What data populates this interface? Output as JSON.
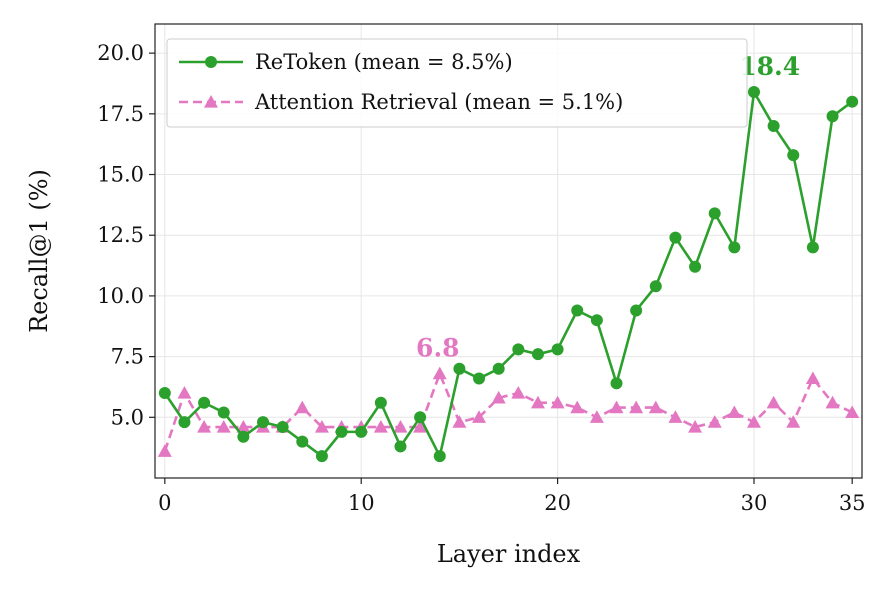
{
  "chart_data": {
    "type": "line",
    "xlabel": "Layer index",
    "ylabel": "Recall@1 (%)",
    "xlim": [
      -0.5,
      35.5
    ],
    "ylim": [
      2.5,
      21.2
    ],
    "xticks": [
      0,
      10,
      20,
      30,
      35
    ],
    "yticks": [
      5.0,
      7.5,
      10.0,
      12.5,
      15.0,
      17.5,
      20.0
    ],
    "grid": true,
    "legend_position": "top-left",
    "x": [
      0,
      1,
      2,
      3,
      4,
      5,
      6,
      7,
      8,
      9,
      10,
      11,
      12,
      13,
      14,
      15,
      16,
      17,
      18,
      19,
      20,
      21,
      22,
      23,
      24,
      25,
      26,
      27,
      28,
      29,
      30,
      31,
      32,
      33,
      34,
      35
    ],
    "series": [
      {
        "name": "ReToken (mean = 8.5%)",
        "color": "#2ca02c",
        "style": "solid",
        "marker": "circle",
        "values": [
          6.0,
          4.8,
          5.6,
          5.2,
          4.2,
          4.8,
          4.6,
          4.0,
          3.4,
          4.4,
          4.4,
          5.6,
          3.8,
          5.0,
          3.4,
          7.0,
          6.6,
          7.0,
          7.8,
          7.6,
          7.8,
          9.4,
          9.0,
          6.4,
          9.4,
          10.4,
          12.4,
          11.2,
          13.4,
          12.0,
          18.4,
          17.0,
          15.8,
          12.0,
          17.4,
          18.0
        ]
      },
      {
        "name": "Attention Retrieval (mean = 5.1%)",
        "color": "#e377c2",
        "style": "dashed",
        "marker": "triangle",
        "values": [
          3.6,
          6.0,
          4.6,
          4.6,
          4.6,
          4.6,
          4.6,
          5.4,
          4.6,
          4.6,
          4.6,
          4.6,
          4.6,
          4.6,
          6.8,
          4.8,
          5.0,
          5.8,
          6.0,
          5.6,
          5.6,
          5.4,
          5.0,
          5.4,
          5.4,
          5.4,
          5.0,
          4.6,
          4.8,
          5.2,
          4.8,
          5.6,
          4.8,
          6.6,
          5.6,
          5.2
        ]
      }
    ],
    "annotations": [
      {
        "text": "18.4",
        "x": 30.8,
        "y": 19.1,
        "color": "#2ca02c"
      },
      {
        "text": "6.8",
        "x": 13.9,
        "y": 7.5,
        "color": "#e377c2"
      }
    ]
  }
}
